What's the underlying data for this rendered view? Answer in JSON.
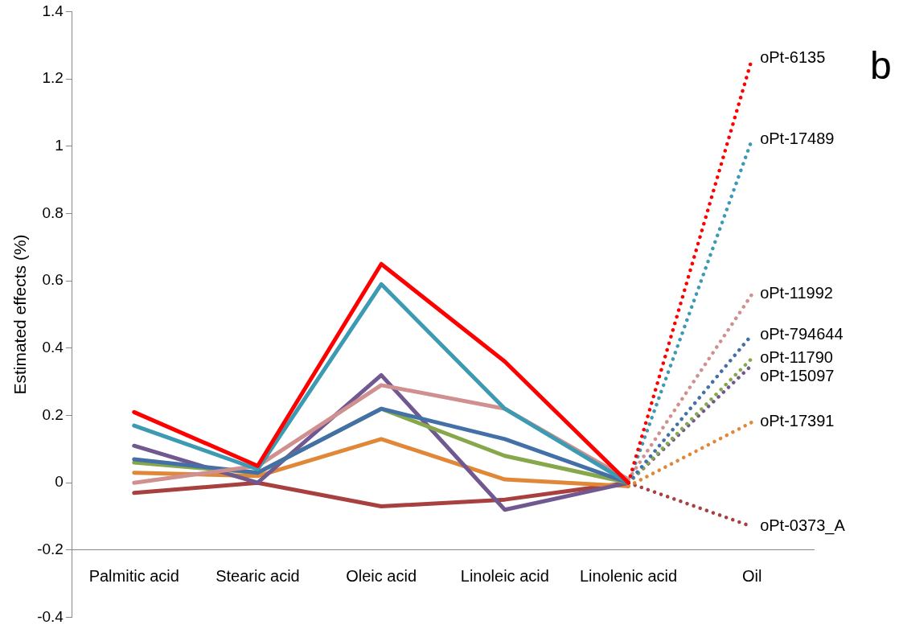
{
  "chart_data": {
    "type": "line",
    "ylabel": "Estimated effects (%)",
    "categories": [
      "Palmitic acid",
      "Stearic acid",
      "Oleic acid",
      "Linoleic acid",
      "Linolenic acid",
      "Oil"
    ],
    "ylim": [
      -0.4,
      1.4
    ],
    "yticks": [
      -0.4,
      -0.2,
      0,
      0.2,
      0.4,
      0.6,
      0.8,
      1,
      1.2,
      1.4
    ],
    "grid": false,
    "legend": false,
    "marker": "none",
    "annotations": [
      "b"
    ],
    "series": [
      {
        "color": "#ff0000",
        "line_style": "solid",
        "values": [
          0.21,
          0.05,
          0.65,
          0.36,
          0,
          null
        ]
      },
      {
        "color": "#3c9ab2",
        "line_style": "solid",
        "values": [
          0.17,
          0.04,
          0.59,
          0.22,
          0,
          null
        ]
      },
      {
        "color": "#d09090",
        "line_style": "solid",
        "values": [
          0,
          0.05,
          0.29,
          0.22,
          0.01,
          null
        ]
      },
      {
        "color": "#4470a8",
        "line_style": "solid",
        "values": [
          0.07,
          0.03,
          0.22,
          0.13,
          0,
          null
        ]
      },
      {
        "color": "#86a84a",
        "line_style": "solid",
        "values": [
          0.06,
          0.03,
          0.22,
          0.08,
          0,
          null
        ]
      },
      {
        "color": "#705890",
        "line_style": "solid",
        "values": [
          0.11,
          0,
          0.32,
          -0.08,
          0,
          null
        ]
      },
      {
        "color": "#e08838",
        "line_style": "solid",
        "values": [
          0.03,
          0.02,
          0.13,
          0.01,
          -0.01,
          null
        ]
      },
      {
        "color": "#a84040",
        "line_style": "solid",
        "values": [
          -0.03,
          0,
          -0.07,
          -0.05,
          0,
          null
        ]
      },
      {
        "name": "oPt-6135",
        "color": "#ff0000",
        "line_style": "dotted",
        "values": [
          null,
          null,
          null,
          null,
          0,
          1.26
        ]
      },
      {
        "name": "oPt-17489",
        "color": "#3c9ab2",
        "line_style": "dotted",
        "values": [
          null,
          null,
          null,
          null,
          0,
          1.02
        ]
      },
      {
        "name": "oPt-11992",
        "color": "#d09090",
        "line_style": "dotted",
        "values": [
          null,
          null,
          null,
          null,
          0.01,
          0.56
        ]
      },
      {
        "name": "oPt-794644",
        "color": "#4470a8",
        "line_style": "dotted",
        "values": [
          null,
          null,
          null,
          null,
          0,
          0.44
        ]
      },
      {
        "name": "oPt-11790",
        "color": "#86a84a",
        "line_style": "dotted",
        "values": [
          null,
          null,
          null,
          null,
          0,
          0.37
        ]
      },
      {
        "name": "oPt-15097",
        "color": "#705890",
        "line_style": "dotted",
        "values": [
          null,
          null,
          null,
          null,
          0,
          0.35
        ]
      },
      {
        "name": "oPt-17391",
        "color": "#e08838",
        "line_style": "dotted",
        "values": [
          null,
          null,
          null,
          null,
          -0.01,
          0.18
        ]
      },
      {
        "name": "oPt-0373_A",
        "color": "#a84040",
        "line_style": "dotted",
        "values": [
          null,
          null,
          null,
          null,
          0,
          -0.13
        ]
      }
    ]
  }
}
